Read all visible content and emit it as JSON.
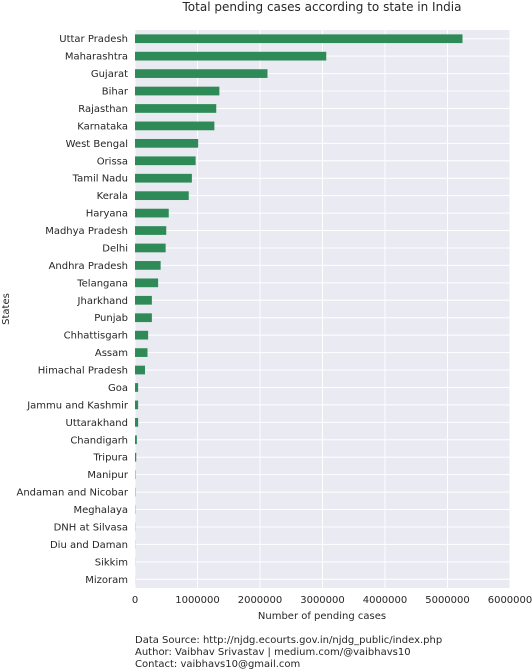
{
  "chart_data": {
    "type": "bar",
    "orientation": "horizontal",
    "title": "Total pending cases according to state in India",
    "xlabel": "Number of pending cases",
    "ylabel": "States",
    "xlim": [
      0,
      6000000
    ],
    "xticks": [
      0,
      1000000,
      2000000,
      3000000,
      4000000,
      5000000,
      6000000
    ],
    "xtick_labels": [
      "0",
      "1000000",
      "2000000",
      "3000000",
      "4000000",
      "5000000",
      "6000000"
    ],
    "grid": true,
    "bar_color": "#2e8b57",
    "background_color": "#eaeaf2",
    "categories": [
      "Uttar Pradesh",
      "Maharashtra",
      "Gujarat",
      "Bihar",
      "Rajasthan",
      "Karnataka",
      "West Bengal",
      "Orissa",
      "Tamil Nadu",
      "Kerala",
      "Haryana",
      "Madhya Pradesh",
      "Delhi",
      "Andhra Pradesh",
      "Telangana",
      "Jharkhand",
      "Punjab",
      "Chhattisgarh",
      "Assam",
      "Himachal Pradesh",
      "Goa",
      "Jammu and Kashmir",
      "Uttarakhand",
      "Chandigarh",
      "Tripura",
      "Manipur",
      "Andaman and Nicobar",
      "Meghalaya",
      "DNH at Silvasa",
      "Diu and Daman",
      "Sikkim",
      "Mizoram"
    ],
    "values": [
      5240000,
      3060000,
      2120000,
      1350000,
      1300000,
      1270000,
      1010000,
      970000,
      910000,
      860000,
      540000,
      500000,
      490000,
      410000,
      370000,
      270000,
      270000,
      210000,
      200000,
      160000,
      50000,
      50000,
      50000,
      30000,
      20000,
      6000,
      5000,
      4000,
      3000,
      2000,
      1500,
      1000
    ]
  },
  "footer": {
    "source": "Data Source: http://njdg.ecourts.gov.in/njdg_public/index.php",
    "author": "Author: Vaibhav Srivastav | medium.com/@vaibhavs10",
    "contact": "Contact: vaibhavs10@gmail.com"
  }
}
